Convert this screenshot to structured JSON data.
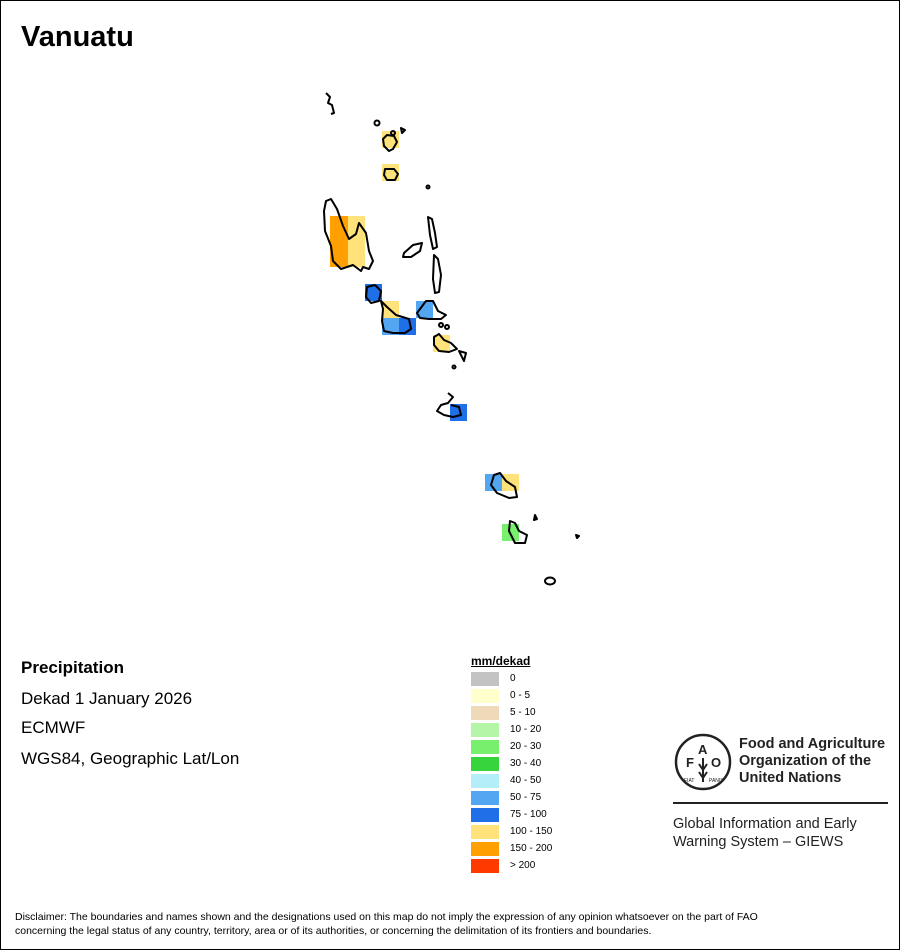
{
  "title": "Vanuatu",
  "info": {
    "variable": "Precipitation",
    "period": "Dekad 1 January 2026",
    "source": "ECMWF",
    "projection": "WGS84, Geographic Lat/Lon"
  },
  "legend": {
    "title": "mm/dekad",
    "items": [
      {
        "label": "0",
        "color": "#c3c3c3"
      },
      {
        "label": "0 - 5",
        "color": "#ffffcc"
      },
      {
        "label": "5 - 10",
        "color": "#eed9b8"
      },
      {
        "label": "10 - 20",
        "color": "#b5f5a8"
      },
      {
        "label": "20 - 30",
        "color": "#78f06e"
      },
      {
        "label": "30 - 40",
        "color": "#38d43c"
      },
      {
        "label": "40 - 50",
        "color": "#b4eef8"
      },
      {
        "label": "50 - 75",
        "color": "#52a6f2"
      },
      {
        "label": "75 - 100",
        "color": "#1f6fe8"
      },
      {
        "label": "100 - 150",
        "color": "#ffe27a"
      },
      {
        "label": "150 - 200",
        "color": "#ffa000"
      },
      {
        "label": "> 200",
        "color": "#ff3a00"
      }
    ]
  },
  "logo": {
    "letters": "FAO",
    "motto": "FIAT PANIS",
    "org_line1": "Food and Agriculture",
    "org_line2": "Organization of the",
    "org_line3": "United Nations",
    "giews_line1": "Global Information and Early",
    "giews_line2": "Warning System – GIEWS"
  },
  "disclaimer": {
    "line1": "Disclaimer: The boundaries and names shown and the designations used on this map do not imply the expression of any opinion whatsoever on the part of FAO",
    "line2": "concerning the legal status of any country, territory, area or of its authorities, or concerning the delimitation of its frontiers and boundaries."
  }
}
